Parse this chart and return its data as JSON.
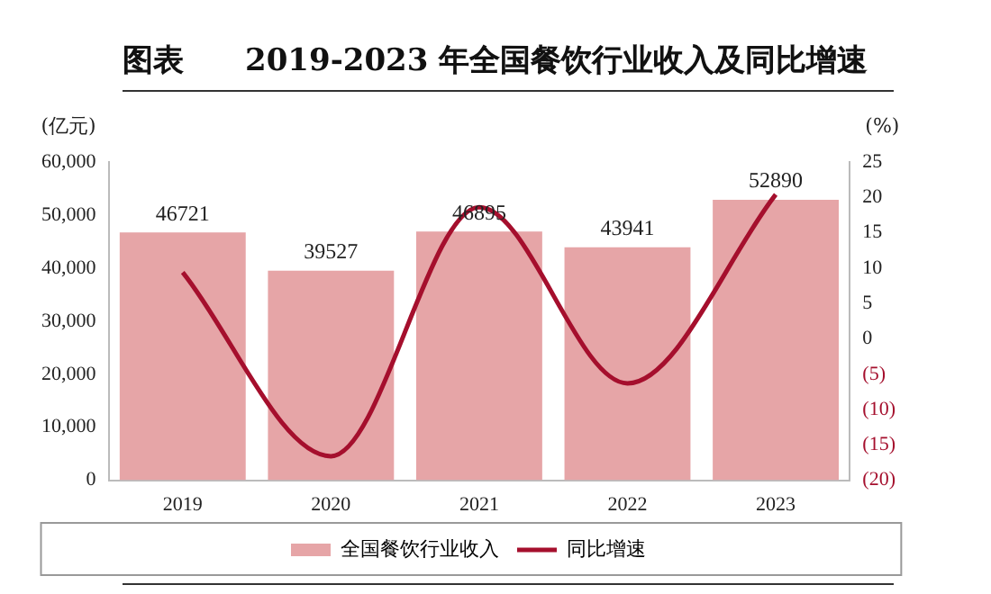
{
  "chart_data": {
    "type": "bar",
    "title": "图表　　2019-2023 年全国餐饮行业收入及同比增速",
    "ylabel": "(亿元)",
    "y2label": "(%)",
    "categories": [
      "2019",
      "2020",
      "2021",
      "2022",
      "2023"
    ],
    "series": [
      {
        "name": "全国餐饮行业收入",
        "color": "#e6a5a7",
        "values": [
          46721,
          39527,
          46895,
          43941,
          52890
        ],
        "value_labels": [
          "46721",
          "39527",
          "46895",
          "43941",
          "52890"
        ]
      },
      {
        "name": "同比增速",
        "type": "line",
        "axis": "y2",
        "color": "#a50f2d",
        "values": [
          9.4,
          -16.6,
          18.6,
          -6.3,
          20.4
        ]
      }
    ],
    "ylim": [
      0,
      60000
    ],
    "yticks": [
      {
        "value": 0,
        "label": "0"
      },
      {
        "value": 10000,
        "label": "10,000"
      },
      {
        "value": 20000,
        "label": "20,000"
      },
      {
        "value": 30000,
        "label": "30,000"
      },
      {
        "value": 40000,
        "label": "40,000"
      },
      {
        "value": 50000,
        "label": "50,000"
      },
      {
        "value": 60000,
        "label": "60,000"
      }
    ],
    "y2lim": [
      -20,
      25
    ],
    "y2ticks": [
      {
        "value": -20,
        "label": "(20)"
      },
      {
        "value": -15,
        "label": "(15)"
      },
      {
        "value": -10,
        "label": "(10)"
      },
      {
        "value": -5,
        "label": "(5)"
      },
      0,
      5,
      10,
      15,
      20,
      25
    ],
    "grid": false,
    "legend": "bottom",
    "marker": "none",
    "line_style": "solid"
  }
}
